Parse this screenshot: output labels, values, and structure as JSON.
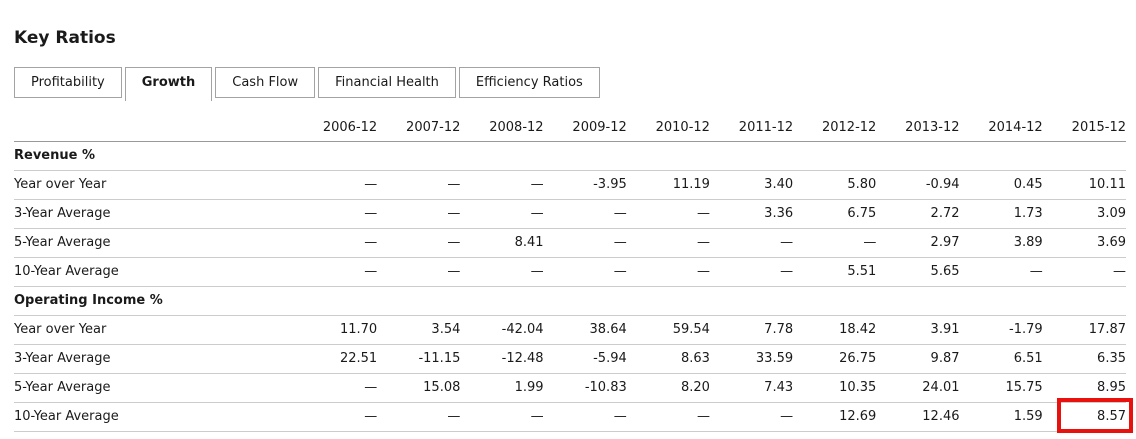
{
  "page": {
    "title": "Key Ratios"
  },
  "tabs": [
    {
      "label": "Profitability",
      "selected": false
    },
    {
      "label": "Growth",
      "selected": true
    },
    {
      "label": "Cash Flow",
      "selected": false
    },
    {
      "label": "Financial Health",
      "selected": false
    },
    {
      "label": "Efficiency Ratios",
      "selected": false
    }
  ],
  "table": {
    "columns": [
      "2006-12",
      "2007-12",
      "2008-12",
      "2009-12",
      "2010-12",
      "2011-12",
      "2012-12",
      "2013-12",
      "2014-12",
      "2015-12"
    ],
    "sections": [
      {
        "header": "Revenue %",
        "rows": [
          {
            "label": "Year over Year",
            "values": [
              "—",
              "—",
              "—",
              "-3.95",
              "11.19",
              "3.40",
              "5.80",
              "-0.94",
              "0.45",
              "10.11"
            ]
          },
          {
            "label": "3-Year Average",
            "values": [
              "—",
              "—",
              "—",
              "—",
              "—",
              "3.36",
              "6.75",
              "2.72",
              "1.73",
              "3.09"
            ]
          },
          {
            "label": "5-Year Average",
            "values": [
              "—",
              "—",
              "8.41",
              "—",
              "—",
              "—",
              "—",
              "2.97",
              "3.89",
              "3.69"
            ]
          },
          {
            "label": "10-Year Average",
            "values": [
              "—",
              "—",
              "—",
              "—",
              "—",
              "—",
              "5.51",
              "5.65",
              "—",
              "—"
            ]
          }
        ]
      },
      {
        "header": "Operating Income %",
        "rows": [
          {
            "label": "Year over Year",
            "values": [
              "11.70",
              "3.54",
              "-42.04",
              "38.64",
              "59.54",
              "7.78",
              "18.42",
              "3.91",
              "-1.79",
              "17.87"
            ]
          },
          {
            "label": "3-Year Average",
            "values": [
              "22.51",
              "-11.15",
              "-12.48",
              "-5.94",
              "8.63",
              "33.59",
              "26.75",
              "9.87",
              "6.51",
              "6.35"
            ]
          },
          {
            "label": "5-Year Average",
            "values": [
              "—",
              "15.08",
              "1.99",
              "-10.83",
              "8.20",
              "7.43",
              "10.35",
              "24.01",
              "15.75",
              "8.95"
            ]
          },
          {
            "label": "10-Year Average",
            "values": [
              "—",
              "—",
              "—",
              "—",
              "—",
              "—",
              "12.69",
              "12.46",
              "1.59",
              "8.57"
            ]
          }
        ]
      }
    ],
    "highlight": {
      "section": 1,
      "row": 3,
      "col": 9,
      "value": "8.57"
    }
  },
  "colors": {
    "highlight": "#e8110d",
    "border_dark": "#999999",
    "border_light": "#cccccc",
    "tab_border": "#a3a3a3",
    "text": "#1a1a1a"
  }
}
